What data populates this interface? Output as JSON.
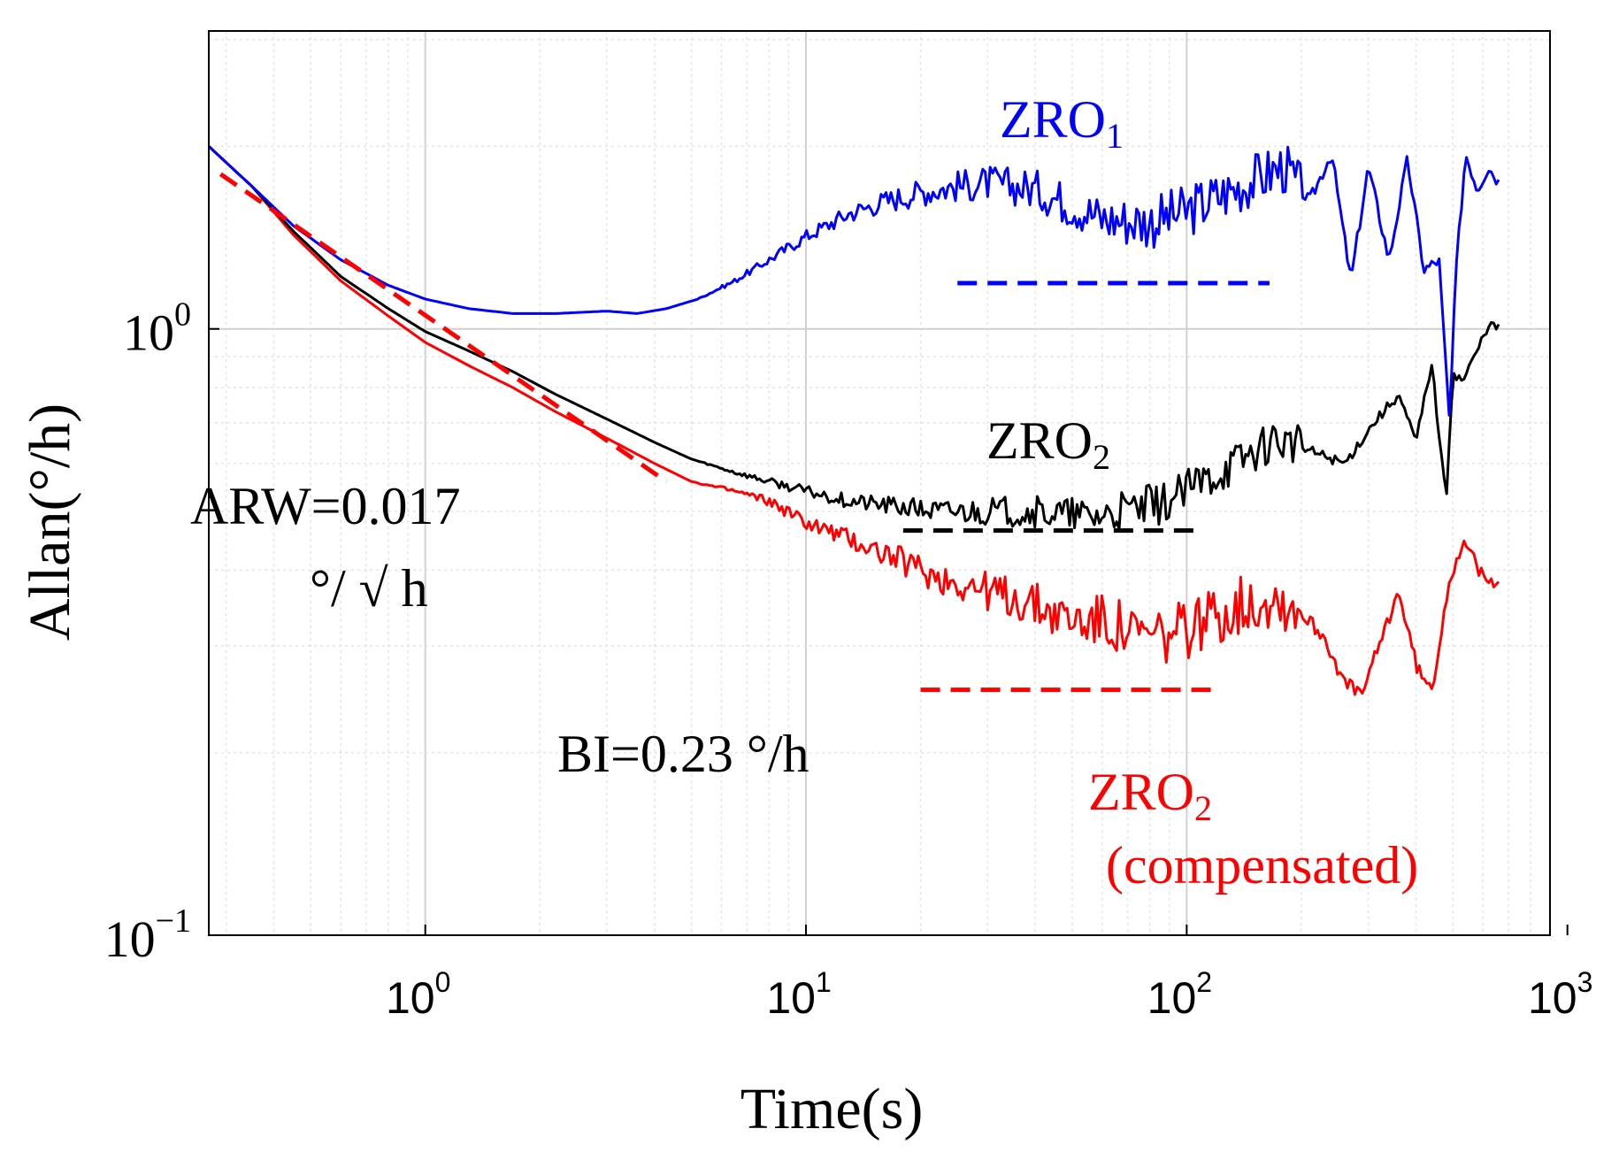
{
  "chart_data": {
    "type": "line",
    "title": "",
    "xlabel": "Time(s)",
    "ylabel": "Allan(°/h)",
    "xscale": "log",
    "yscale": "log",
    "xlim": [
      0.27,
      900
    ],
    "ylim": [
      0.1,
      3.1
    ],
    "grid": true,
    "x_ticks": [
      {
        "value": 1,
        "base": "10",
        "exp": "0"
      },
      {
        "value": 10,
        "base": "10",
        "exp": "1"
      },
      {
        "value": 100,
        "base": "10",
        "exp": "2"
      },
      {
        "value": 1000,
        "base": "10",
        "exp": "3"
      }
    ],
    "y_ticks": [
      {
        "value": 0.1,
        "base": "10",
        "exp": "−1"
      },
      {
        "value": 1,
        "base": "10",
        "exp": "0"
      }
    ],
    "series": [
      {
        "name": "ZRO1",
        "color": "#0000ff",
        "x": [
          0.27,
          0.35,
          0.45,
          0.6,
          0.8,
          1.0,
          1.3,
          1.7,
          2.2,
          3.0,
          3.6,
          4.3,
          5.2,
          6.5,
          8.0,
          10,
          13,
          16,
          20,
          25,
          30,
          40,
          50,
          60,
          80,
          100,
          120,
          150,
          180,
          210,
          240,
          270,
          300,
          340,
          380,
          420,
          460,
          490,
          510,
          540,
          580,
          620,
          660
        ],
        "values": [
          2.0,
          1.72,
          1.48,
          1.3,
          1.18,
          1.12,
          1.08,
          1.06,
          1.06,
          1.07,
          1.06,
          1.08,
          1.12,
          1.2,
          1.3,
          1.42,
          1.55,
          1.62,
          1.68,
          1.72,
          1.74,
          1.7,
          1.6,
          1.52,
          1.5,
          1.56,
          1.65,
          1.76,
          1.85,
          1.62,
          1.95,
          1.2,
          1.85,
          1.3,
          1.9,
          1.25,
          1.3,
          0.7,
          1.25,
          1.95,
          1.7,
          1.85,
          1.75
        ]
      },
      {
        "name": "ZRO2",
        "color": "#000000",
        "x": [
          0.27,
          0.35,
          0.45,
          0.6,
          0.8,
          1.0,
          1.3,
          1.7,
          2.2,
          3.0,
          4.0,
          5.0,
          6.5,
          8.0,
          10,
          13,
          17,
          22,
          30,
          40,
          55,
          70,
          90,
          110,
          140,
          170,
          210,
          260,
          310,
          360,
          400,
          440,
          480,
          500,
          530,
          580,
          620,
          660
        ],
        "values": [
          2.0,
          1.72,
          1.45,
          1.22,
          1.08,
          0.99,
          0.92,
          0.85,
          0.78,
          0.71,
          0.65,
          0.61,
          0.58,
          0.56,
          0.54,
          0.52,
          0.51,
          0.5,
          0.5,
          0.5,
          0.49,
          0.5,
          0.52,
          0.56,
          0.61,
          0.66,
          0.63,
          0.6,
          0.7,
          0.78,
          0.65,
          0.88,
          0.52,
          0.85,
          0.82,
          0.92,
          1.02,
          1.0
        ]
      },
      {
        "name": "ZRO2 (compensated)",
        "color": "#ff0000",
        "x": [
          0.27,
          0.35,
          0.45,
          0.6,
          0.8,
          1.0,
          1.3,
          1.7,
          2.2,
          3.0,
          4.0,
          5.0,
          6.5,
          8.0,
          10,
          13,
          17,
          22,
          30,
          40,
          50,
          60,
          75,
          90,
          110,
          140,
          170,
          200,
          230,
          260,
          290,
          320,
          360,
          400,
          440,
          480,
          510,
          540,
          580,
          620,
          660
        ],
        "values": [
          2.0,
          1.72,
          1.43,
          1.2,
          1.05,
          0.95,
          0.87,
          0.8,
          0.73,
          0.66,
          0.6,
          0.56,
          0.54,
          0.52,
          0.48,
          0.45,
          0.42,
          0.39,
          0.37,
          0.35,
          0.33,
          0.33,
          0.31,
          0.31,
          0.33,
          0.35,
          0.36,
          0.34,
          0.31,
          0.26,
          0.25,
          0.3,
          0.37,
          0.28,
          0.25,
          0.36,
          0.42,
          0.45,
          0.4,
          0.38,
          0.39
        ]
      }
    ],
    "reference_lines": [
      {
        "name": "ARW slope",
        "color": "#ff0000",
        "x": [
          0.29,
          4.3
        ],
        "values": [
          1.8,
          0.56
        ]
      },
      {
        "name": "ZRO1 bias level",
        "color": "#0000ff",
        "x": [
          25,
          165
        ],
        "values": [
          1.19,
          1.19
        ]
      },
      {
        "name": "ZRO2 bias level",
        "color": "#000000",
        "x": [
          18,
          110
        ],
        "values": [
          0.465,
          0.465
        ]
      },
      {
        "name": "ZRO2 compensated bias level",
        "color": "#ff0000",
        "x": [
          20,
          120
        ],
        "values": [
          0.254,
          0.254
        ]
      }
    ],
    "annotations": [
      {
        "id": "zro1",
        "color": "#0000ff",
        "main": "ZRO",
        "sub": "1"
      },
      {
        "id": "zro2",
        "color": "#000000",
        "main": "ZRO",
        "sub": "2"
      },
      {
        "id": "zro2c",
        "color": "#ff0000",
        "main": "ZRO",
        "sub": "2",
        "line2": "(compensated)"
      },
      {
        "id": "arw",
        "color": "#000000",
        "line1": "ARW=0.017",
        "line2": "°/ √ h"
      },
      {
        "id": "bi",
        "color": "#000000",
        "line1": "BI=0.23 °/h"
      }
    ]
  }
}
